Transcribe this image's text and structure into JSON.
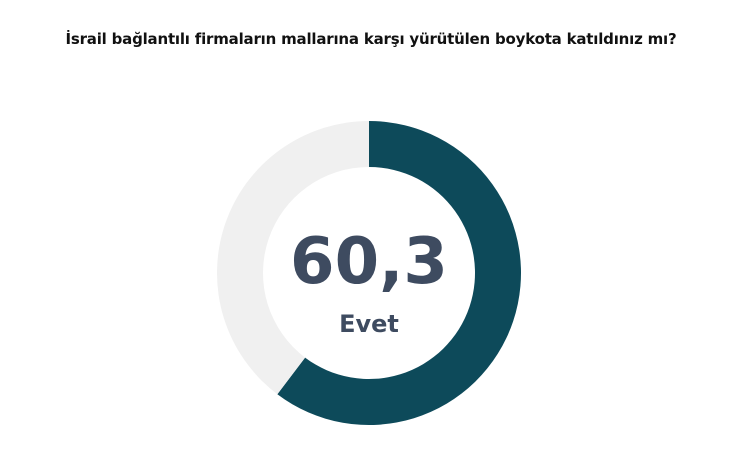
{
  "chart_data": {
    "type": "pie",
    "variant": "donut",
    "title": "İsrail bağlantılı firmaların mallarına karşı yürütülen boykota katıldınız mı?",
    "values": [
      60.3,
      39.7
    ],
    "colors": [
      "#0d4a5a",
      "#f0f0f0"
    ],
    "center_value": "60,3",
    "center_label": "Evet",
    "legend": "none"
  }
}
